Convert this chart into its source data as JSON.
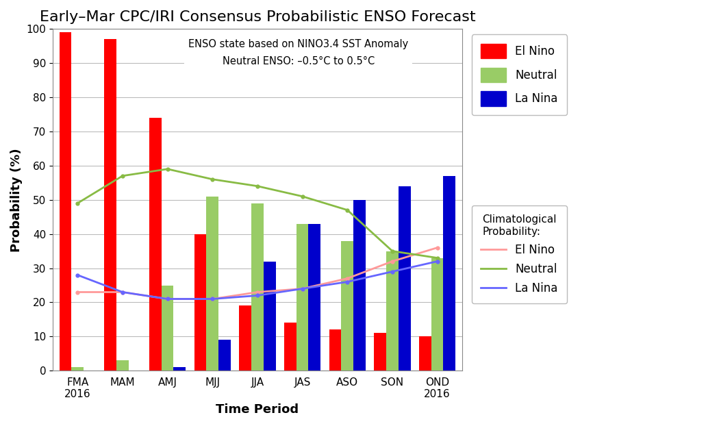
{
  "title": "Early–Mar CPC/IRI Consensus Probabilistic ENSO Forecast",
  "xlabel": "Time Period",
  "ylabel": "Probability (%)",
  "categories": [
    "FMA\n2016",
    "MAM",
    "AMJ",
    "MJJ",
    "JJA",
    "JAS",
    "ASO",
    "SON",
    "OND\n2016"
  ],
  "el_nino_bars": [
    99,
    97,
    74,
    40,
    19,
    14,
    12,
    11,
    10
  ],
  "neutral_bars": [
    1,
    3,
    25,
    51,
    49,
    43,
    38,
    35,
    33
  ],
  "la_nina_bars": [
    0,
    0,
    1,
    9,
    32,
    43,
    50,
    54,
    57
  ],
  "clim_el_nino": [
    23,
    23,
    21,
    21,
    23,
    24,
    27,
    32,
    36
  ],
  "clim_neutral": [
    49,
    57,
    59,
    56,
    54,
    51,
    47,
    35,
    33
  ],
  "clim_la_nina": [
    28,
    23,
    21,
    21,
    22,
    24,
    26,
    29,
    32
  ],
  "bar_width": 0.27,
  "ylim": [
    0,
    100
  ],
  "yticks": [
    0,
    10,
    20,
    30,
    40,
    50,
    60,
    70,
    80,
    90,
    100
  ],
  "el_nino_color": "#ff0000",
  "neutral_color": "#99cc66",
  "la_nina_color": "#0000cc",
  "clim_el_nino_color": "#ff9999",
  "clim_neutral_color": "#88bb44",
  "clim_la_nina_color": "#6666ff",
  "annotation_line1": "ENSO state based on NINO3.4 SST Anomaly",
  "annotation_line2": "Neutral ENSO: –0.5°C to 0.5°C",
  "bg_color": "#ffffff",
  "grid_color": "#bbbbbb",
  "title_fontsize": 16,
  "axis_label_fontsize": 13,
  "tick_fontsize": 11,
  "legend1_title": "",
  "legend2_title": "Climatological\nProbability:"
}
